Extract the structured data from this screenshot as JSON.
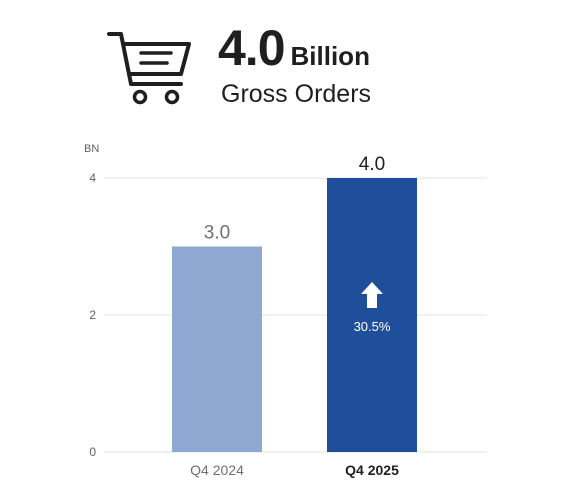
{
  "header": {
    "value": "4.0",
    "unit": "Billion",
    "subtitle": "Gross Orders",
    "icon": "shopping-cart-icon"
  },
  "chart_data": {
    "type": "bar",
    "categories": [
      "Q4 2024",
      "Q4 2025"
    ],
    "values": [
      3.0,
      4.0
    ],
    "data_labels": [
      "3.0",
      "4.0"
    ],
    "ylabel": "BN",
    "ylim": [
      0,
      4
    ],
    "yticks": [
      "0",
      "2",
      "4"
    ],
    "ytick_values": [
      0,
      2,
      4
    ],
    "grid": true,
    "colors": [
      "#8ea9d1",
      "#1f4f9b"
    ],
    "annotation": {
      "category": "Q4 2025",
      "text": "30.5%",
      "icon": "up-arrow-icon"
    }
  }
}
